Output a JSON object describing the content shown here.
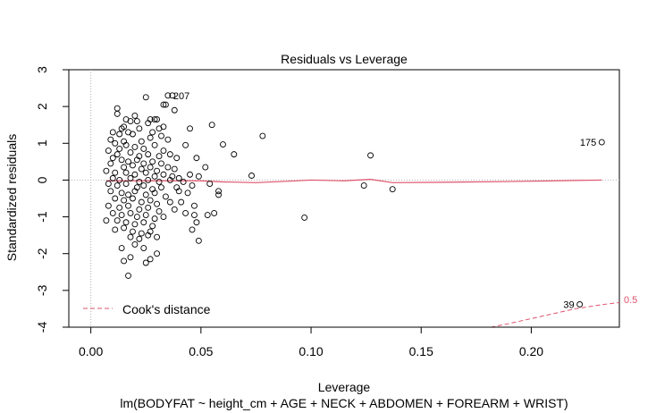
{
  "chart_data": {
    "type": "scatter",
    "title": "Residuals vs Leverage",
    "xlabel": "Leverage",
    "ylabel": "Standardized residuals",
    "subtitle": "lm(BODYFAT ~ height_cm + AGE + NECK + ABDOMEN + FOREARM + WRIST)",
    "xlim": [
      -0.01,
      0.24
    ],
    "ylim": [
      -4,
      3
    ],
    "x_ticks": [
      0.0,
      0.05,
      0.1,
      0.15,
      0.2
    ],
    "x_tick_labels": [
      "0.00",
      "0.05",
      "0.10",
      "0.15",
      "0.20"
    ],
    "y_ticks": [
      -4,
      -3,
      -2,
      -1,
      0,
      1,
      2,
      3
    ],
    "y_tick_labels": [
      "-4",
      "-3",
      "-2",
      "-1",
      "0",
      "1",
      "2",
      "3"
    ],
    "legend": {
      "label": "Cook's distance",
      "placement": "bottom-left"
    },
    "cooks_contour_label": "0.5",
    "colors": {
      "points": "#000000",
      "smoother": "#df536b",
      "cooks": "#df536b",
      "reference": "#b0b0b0"
    },
    "labeled_points": [
      {
        "label": "207",
        "x": 0.035,
        "y": 2.3
      },
      {
        "label": "175",
        "x": 0.232,
        "y": 1.03
      },
      {
        "label": "39",
        "x": 0.222,
        "y": -3.38
      }
    ],
    "points": [
      [
        0.035,
        2.3
      ],
      [
        0.232,
        1.03
      ],
      [
        0.222,
        -3.38
      ],
      [
        0.025,
        2.25
      ],
      [
        0.037,
        2.3
      ],
      [
        0.033,
        2.05
      ],
      [
        0.034,
        2.05
      ],
      [
        0.038,
        1.9
      ],
      [
        0.012,
        1.95
      ],
      [
        0.012,
        1.8
      ],
      [
        0.027,
        1.65
      ],
      [
        0.029,
        1.65
      ],
      [
        0.03,
        1.65
      ],
      [
        0.026,
        1.55
      ],
      [
        0.02,
        1.75
      ],
      [
        0.021,
        1.6
      ],
      [
        0.018,
        1.6
      ],
      [
        0.016,
        1.65
      ],
      [
        0.022,
        1.4
      ],
      [
        0.015,
        1.45
      ],
      [
        0.014,
        1.4
      ],
      [
        0.031,
        1.4
      ],
      [
        0.033,
        1.45
      ],
      [
        0.01,
        1.3
      ],
      [
        0.013,
        1.25
      ],
      [
        0.017,
        1.3
      ],
      [
        0.028,
        1.3
      ],
      [
        0.032,
        1.2
      ],
      [
        0.019,
        1.25
      ],
      [
        0.009,
        1.1
      ],
      [
        0.011,
        1.0
      ],
      [
        0.015,
        1.05
      ],
      [
        0.023,
        1.05
      ],
      [
        0.027,
        1.15
      ],
      [
        0.035,
        1.1
      ],
      [
        0.016,
        0.95
      ],
      [
        0.02,
        0.9
      ],
      [
        0.013,
        0.85
      ],
      [
        0.024,
        0.85
      ],
      [
        0.029,
        0.95
      ],
      [
        0.033,
        0.8
      ],
      [
        0.008,
        0.8
      ],
      [
        0.012,
        0.7
      ],
      [
        0.018,
        0.75
      ],
      [
        0.022,
        0.65
      ],
      [
        0.026,
        0.7
      ],
      [
        0.031,
        0.65
      ],
      [
        0.036,
        0.7
      ],
      [
        0.01,
        0.6
      ],
      [
        0.014,
        0.55
      ],
      [
        0.017,
        0.5
      ],
      [
        0.021,
        0.55
      ],
      [
        0.024,
        0.45
      ],
      [
        0.028,
        0.5
      ],
      [
        0.032,
        0.45
      ],
      [
        0.009,
        0.45
      ],
      [
        0.015,
        0.35
      ],
      [
        0.019,
        0.4
      ],
      [
        0.023,
        0.3
      ],
      [
        0.027,
        0.35
      ],
      [
        0.03,
        0.25
      ],
      [
        0.035,
        0.35
      ],
      [
        0.038,
        0.3
      ],
      [
        0.007,
        0.25
      ],
      [
        0.011,
        0.2
      ],
      [
        0.016,
        0.2
      ],
      [
        0.02,
        0.15
      ],
      [
        0.025,
        0.2
      ],
      [
        0.029,
        0.1
      ],
      [
        0.033,
        0.15
      ],
      [
        0.037,
        0.1
      ],
      [
        0.01,
        0.05
      ],
      [
        0.013,
        0.0
      ],
      [
        0.018,
        0.05
      ],
      [
        0.022,
        -0.05
      ],
      [
        0.026,
        0.0
      ],
      [
        0.031,
        -0.05
      ],
      [
        0.036,
        0.0
      ],
      [
        0.04,
        0.05
      ],
      [
        0.008,
        -0.1
      ],
      [
        0.012,
        -0.15
      ],
      [
        0.016,
        -0.1
      ],
      [
        0.021,
        -0.2
      ],
      [
        0.024,
        -0.15
      ],
      [
        0.028,
        -0.25
      ],
      [
        0.032,
        -0.2
      ],
      [
        0.039,
        -0.2
      ],
      [
        0.009,
        -0.3
      ],
      [
        0.014,
        -0.35
      ],
      [
        0.017,
        -0.4
      ],
      [
        0.02,
        -0.3
      ],
      [
        0.025,
        -0.4
      ],
      [
        0.029,
        -0.35
      ],
      [
        0.034,
        -0.45
      ],
      [
        0.011,
        -0.5
      ],
      [
        0.015,
        -0.55
      ],
      [
        0.019,
        -0.5
      ],
      [
        0.023,
        -0.6
      ],
      [
        0.027,
        -0.55
      ],
      [
        0.03,
        -0.65
      ],
      [
        0.036,
        -0.6
      ],
      [
        0.008,
        -0.7
      ],
      [
        0.013,
        -0.75
      ],
      [
        0.017,
        -0.7
      ],
      [
        0.022,
        -0.8
      ],
      [
        0.026,
        -0.75
      ],
      [
        0.031,
        -0.85
      ],
      [
        0.01,
        -0.9
      ],
      [
        0.014,
        -0.95
      ],
      [
        0.018,
        -0.9
      ],
      [
        0.021,
        -1.0
      ],
      [
        0.025,
        -0.95
      ],
      [
        0.029,
        -1.05
      ],
      [
        0.033,
        -1.0
      ],
      [
        0.007,
        -1.1
      ],
      [
        0.012,
        -1.1
      ],
      [
        0.016,
        -1.15
      ],
      [
        0.02,
        -1.2
      ],
      [
        0.024,
        -1.15
      ],
      [
        0.028,
        -1.25
      ],
      [
        0.011,
        -1.35
      ],
      [
        0.015,
        -1.3
      ],
      [
        0.019,
        -1.4
      ],
      [
        0.023,
        -1.45
      ],
      [
        0.027,
        -1.4
      ],
      [
        0.018,
        -1.55
      ],
      [
        0.022,
        -1.6
      ],
      [
        0.026,
        -1.5
      ],
      [
        0.03,
        -1.55
      ],
      [
        0.014,
        -1.85
      ],
      [
        0.02,
        -1.75
      ],
      [
        0.024,
        -1.85
      ],
      [
        0.018,
        -2.1
      ],
      [
        0.015,
        -2.2
      ],
      [
        0.027,
        -2.15
      ],
      [
        0.025,
        -2.25
      ],
      [
        0.017,
        -2.6
      ],
      [
        0.03,
        -2.0
      ],
      [
        0.055,
        1.5
      ],
      [
        0.06,
        0.97
      ],
      [
        0.065,
        0.7
      ],
      [
        0.078,
        1.2
      ],
      [
        0.045,
        1.4
      ],
      [
        0.043,
        0.95
      ],
      [
        0.048,
        0.6
      ],
      [
        0.052,
        0.35
      ],
      [
        0.045,
        0.15
      ],
      [
        0.049,
        0.1
      ],
      [
        0.042,
        -0.05
      ],
      [
        0.046,
        -0.15
      ],
      [
        0.054,
        -0.1
      ],
      [
        0.058,
        -0.3
      ],
      [
        0.058,
        -0.4
      ],
      [
        0.044,
        -0.35
      ],
      [
        0.041,
        -0.6
      ],
      [
        0.047,
        -0.7
      ],
      [
        0.043,
        -0.9
      ],
      [
        0.047,
        -0.95
      ],
      [
        0.056,
        -0.9
      ],
      [
        0.053,
        -0.95
      ],
      [
        0.048,
        -1.15
      ],
      [
        0.046,
        -1.35
      ],
      [
        0.049,
        -1.65
      ],
      [
        0.04,
        -0.3
      ],
      [
        0.038,
        -0.8
      ],
      [
        0.039,
        0.6
      ],
      [
        0.073,
        0.12
      ],
      [
        0.097,
        -1.02
      ],
      [
        0.124,
        -0.15
      ],
      [
        0.127,
        0.67
      ],
      [
        0.137,
        -0.25
      ]
    ],
    "smoother": [
      [
        0.007,
        -0.02
      ],
      [
        0.03,
        -0.02
      ],
      [
        0.05,
        -0.02
      ],
      [
        0.06,
        -0.05
      ],
      [
        0.075,
        -0.07
      ],
      [
        0.09,
        -0.03
      ],
      [
        0.1,
        0.0
      ],
      [
        0.115,
        -0.02
      ],
      [
        0.127,
        0.02
      ],
      [
        0.137,
        -0.07
      ],
      [
        0.16,
        -0.06
      ],
      [
        0.19,
        -0.04
      ],
      [
        0.232,
        0.0
      ]
    ],
    "cooks_curve": [
      [
        0.172,
        -4.12
      ],
      [
        0.19,
        -3.9
      ],
      [
        0.205,
        -3.7
      ],
      [
        0.22,
        -3.5
      ],
      [
        0.233,
        -3.38
      ],
      [
        0.24,
        -3.33
      ]
    ]
  }
}
